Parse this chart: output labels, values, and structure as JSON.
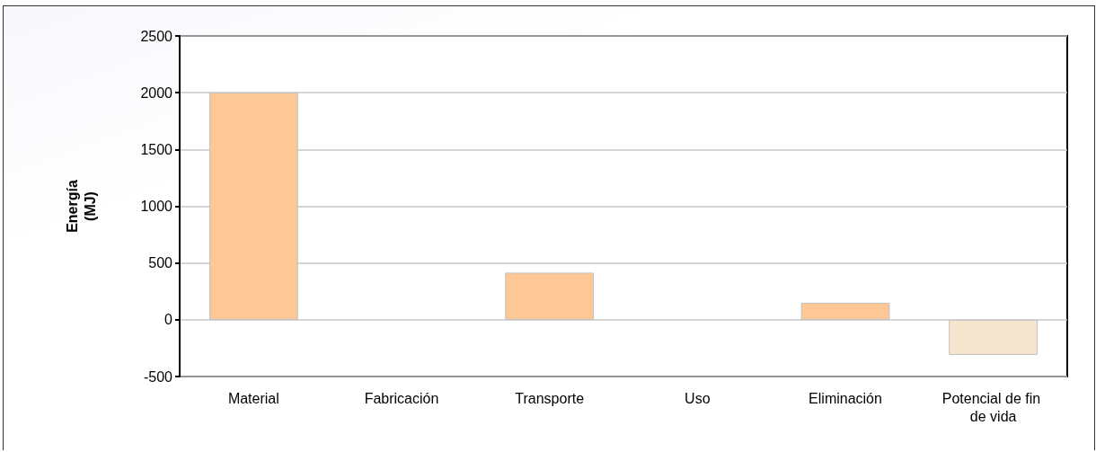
{
  "chart_data": {
    "type": "bar",
    "ylabel": "Energía (MJ)",
    "categories": [
      "Material",
      "Fabricación",
      "Transporte",
      "Uso",
      "Eliminación",
      "Potencial de fin de vida"
    ],
    "values": [
      2000,
      0,
      415,
      0,
      150,
      -310
    ],
    "colors": [
      "#fdc895",
      "#fdc895",
      "#fdc895",
      "#fdc895",
      "#fdc895",
      "#f7e6cf"
    ],
    "ylim": [
      -500,
      2500
    ],
    "yticks": [
      -500,
      0,
      500,
      1000,
      1500,
      2000,
      2500
    ],
    "grid": "y"
  }
}
